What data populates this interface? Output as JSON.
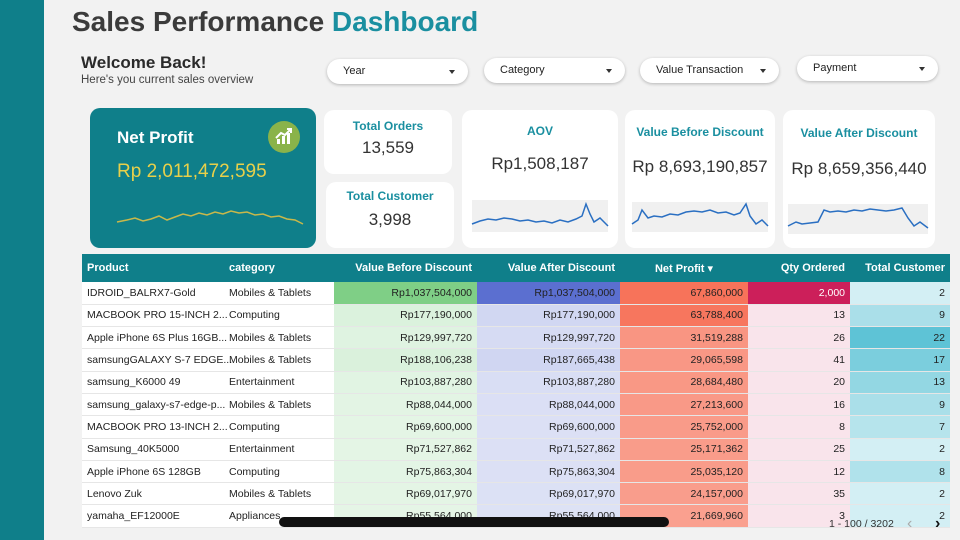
{
  "header": {
    "title_main": "Sales Performance",
    "title_accent": "Dashboard"
  },
  "welcome": {
    "heading": "Welcome Back!",
    "subtitle": "Here's you current sales overview"
  },
  "filters": [
    {
      "label": "Year"
    },
    {
      "label": "Category"
    },
    {
      "label": "Value Transaction"
    },
    {
      "label": "Payment"
    }
  ],
  "kpi": {
    "net_profit": {
      "label": "Net Profit",
      "value": "Rp 2,011,472,595",
      "icon": "trend-up-icon"
    },
    "total_orders": {
      "label": "Total Orders",
      "value": "13,559"
    },
    "total_customer": {
      "label": "Total Customer",
      "value": "3,998"
    },
    "aov": {
      "label": "AOV",
      "value": "Rp1,508,187"
    },
    "value_before_discount": {
      "label": "Value Before Discount",
      "value": "Rp 8,693,190,857"
    },
    "value_after_discount": {
      "label": "Value After Discount",
      "value": "Rp 8,659,356,440"
    }
  },
  "table": {
    "headers": [
      "Product",
      "category",
      "Value Before Discount",
      "Value After Discount",
      "Net Profit",
      "Qty Ordered",
      "Total Customer"
    ],
    "sort_icon": "caret-down-icon",
    "rows": [
      [
        "IDROID_BALRX7-Gold",
        "Mobiles & Tablets",
        "Rp1,037,504,000",
        "Rp1,037,504,000",
        "67,860,000",
        "2,000",
        "2"
      ],
      [
        "MACBOOK PRO 15-INCH 2...",
        "Computing",
        "Rp177,190,000",
        "Rp177,190,000",
        "63,788,400",
        "13",
        "9"
      ],
      [
        "Apple iPhone 6S Plus 16GB...",
        "Mobiles & Tablets",
        "Rp129,997,720",
        "Rp129,997,720",
        "31,519,288",
        "26",
        "22"
      ],
      [
        "samsungGALAXY S-7 EDGE...",
        "Mobiles & Tablets",
        "Rp188,106,238",
        "Rp187,665,438",
        "29,065,598",
        "41",
        "17"
      ],
      [
        "samsung_K6000 49",
        "Entertainment",
        "Rp103,887,280",
        "Rp103,887,280",
        "28,684,480",
        "20",
        "13"
      ],
      [
        "samsung_galaxy-s7-edge-p...",
        "Mobiles & Tablets",
        "Rp88,044,000",
        "Rp88,044,000",
        "27,213,600",
        "16",
        "9"
      ],
      [
        "MACBOOK PRO 13-INCH 2...",
        "Computing",
        "Rp69,600,000",
        "Rp69,600,000",
        "25,752,000",
        "8",
        "7"
      ],
      [
        "Samsung_40K5000",
        "Entertainment",
        "Rp71,527,862",
        "Rp71,527,862",
        "25,171,362",
        "25",
        "2"
      ],
      [
        "Apple iPhone 6S 128GB",
        "Computing",
        "Rp75,863,304",
        "Rp75,863,304",
        "25,035,120",
        "12",
        "8"
      ],
      [
        "Lenovo Zuk",
        "Mobiles & Tablets",
        "Rp69,017,970",
        "Rp69,017,970",
        "24,157,000",
        "35",
        "2"
      ],
      [
        "yamaha_EF12000E",
        "Appliances",
        "Rp55,564,000",
        "Rp55,564,000",
        "21,669,960",
        "3",
        "2"
      ]
    ]
  },
  "pagination": {
    "text": "1 - 100 / 3202",
    "prev_icon": "chevron-left-icon",
    "next_icon": "chevron-right-icon"
  },
  "colors": {
    "teal": "#0f7f8a",
    "accent_text": "#1a8fa0",
    "net_profit_value": "#e8d04a",
    "vbd_high": "#7fcf86",
    "vad_high": "#5b6fd0",
    "np_high": "#f7735a",
    "qty_high": "#cc1f5a"
  }
}
